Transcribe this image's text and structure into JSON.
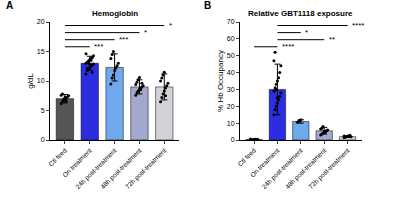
{
  "chart_data": [
    {
      "type": "bar",
      "panel": "A",
      "title": "Hemoglobin",
      "y_label": "g/dL",
      "categories": [
        "Ctl feed",
        "On treatment",
        "24h post-treatment",
        "48h post-treatment",
        "72h post-treatment"
      ],
      "values": [
        7.0,
        13.0,
        12.3,
        9.0,
        9.0
      ],
      "errors": [
        0.7,
        1.2,
        2.3,
        1.2,
        2.2
      ],
      "points": [
        [
          6.2,
          6.5,
          6.8,
          7.0,
          7.1,
          7.3,
          7.5,
          7.6,
          7.8,
          6.9,
          7.2,
          6.6
        ],
        [
          11.2,
          11.8,
          12.0,
          12.3,
          12.5,
          12.7,
          12.9,
          13.0,
          13.2,
          13.4,
          13.6,
          13.8,
          14.0,
          14.3,
          14.6,
          12.1,
          13.1,
          12.8,
          13.5,
          11.5
        ],
        [
          9.5,
          10.5,
          11.0,
          11.8,
          12.2,
          12.6,
          13.0,
          13.8,
          14.5,
          15.0
        ],
        [
          7.6,
          8.0,
          8.3,
          8.6,
          8.8,
          9.0,
          9.2,
          9.4,
          9.8,
          10.2,
          10.6,
          8.5,
          9.6
        ],
        [
          6.5,
          7.2,
          7.8,
          8.3,
          8.8,
          9.2,
          9.6,
          10.0,
          10.5,
          11.0,
          11.5,
          7.5
        ]
      ],
      "colors": [
        "#555555",
        "#2a2ee0",
        "#6fa8ec",
        "#a3a8cf",
        "#d2d2d8"
      ],
      "comparisons": [
        {
          "groups": [
            "Ctl feed",
            "72h post-treatment"
          ],
          "label": "*"
        },
        {
          "groups": [
            "Ctl feed",
            "48h post-treatment"
          ],
          "label": "*"
        },
        {
          "groups": [
            "Ctl feed",
            "24h post-treatment"
          ],
          "label": "***"
        },
        {
          "groups": [
            "Ctl feed",
            "On treatment"
          ],
          "label": "***"
        }
      ],
      "ylim": [
        0,
        20
      ],
      "yticks": [
        0,
        5,
        10,
        15,
        20
      ]
    },
    {
      "type": "bar",
      "panel": "B",
      "title": "Relative GBT1118 exposure",
      "y_label": "% Hb Occupancy",
      "categories": [
        "Ctl feed",
        "On treatment",
        "24h post-treatment",
        "48h post-treatment",
        "72h post-treatment"
      ],
      "values": [
        0.3,
        30.0,
        11.0,
        5.5,
        2.0
      ],
      "errors": [
        0.3,
        15.0,
        1.0,
        2.0,
        0.5
      ],
      "points": [
        [
          0,
          0,
          0.2,
          0.3,
          0.5,
          0.1,
          0.4,
          0.6
        ],
        [
          15,
          18,
          20,
          22,
          24,
          26,
          28,
          29,
          31,
          33,
          35,
          37,
          40,
          44,
          47,
          52,
          30,
          25
        ],
        [
          10.5,
          11,
          11.5,
          12
        ],
        [
          3,
          3.5,
          4,
          4.5,
          5,
          5.5,
          6,
          6.5,
          7,
          8,
          5.2,
          4.8
        ],
        [
          1.5,
          1.8,
          2,
          2.2,
          2.5,
          2.8,
          1.9,
          2.3
        ]
      ],
      "colors": [
        "#555555",
        "#2a2ee0",
        "#6fa8ec",
        "#a3a8cf",
        "#d2d2d8"
      ],
      "comparisons": [
        {
          "groups": [
            "On treatment",
            "72h post-treatment"
          ],
          "label": "****"
        },
        {
          "groups": [
            "On treatment",
            "24h post-treatment"
          ],
          "label": "*"
        },
        {
          "groups": [
            "On treatment",
            "48h post-treatment"
          ],
          "label": "**"
        },
        {
          "groups": [
            "Ctl feed",
            "On treatment"
          ],
          "label": "****"
        }
      ],
      "ylim": [
        0,
        70
      ],
      "yticks": [
        0,
        10,
        20,
        30,
        40,
        50,
        60,
        70
      ]
    }
  ]
}
